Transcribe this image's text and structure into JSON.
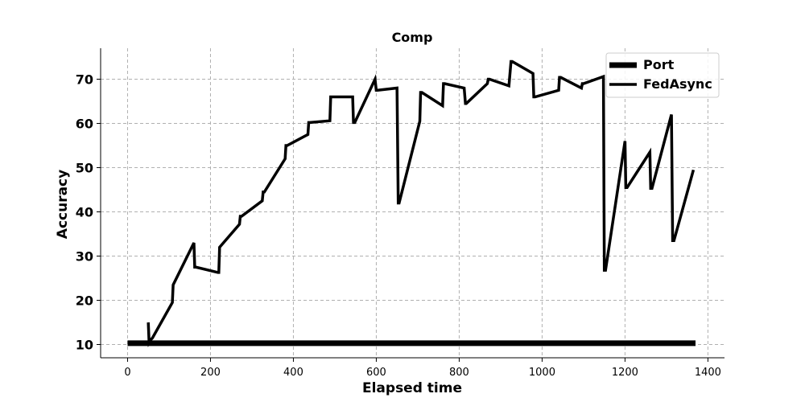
{
  "chart_data": {
    "type": "line",
    "title": "Comp",
    "xlabel": "Elapsed time",
    "ylabel": "Accuracy",
    "xlim": [
      -65,
      1440
    ],
    "ylim": [
      7,
      77
    ],
    "xticks": [
      0,
      200,
      400,
      600,
      800,
      1000,
      1200,
      1400
    ],
    "yticks": [
      10,
      20,
      30,
      40,
      50,
      60,
      70
    ],
    "grid": true,
    "legend_position": "top-right",
    "series": [
      {
        "name": "Port",
        "color": "#000000",
        "line_weight": "thick",
        "x": [
          0,
          1370
        ],
        "y": [
          10.3,
          10.3
        ]
      },
      {
        "name": "FedAsync",
        "color": "#000000",
        "line_weight": "normal",
        "x": [
          50,
          52,
          55,
          60,
          108,
          110,
          160,
          162,
          165,
          218,
          220,
          222,
          270,
          272,
          275,
          325,
          327,
          330,
          380,
          382,
          385,
          435,
          437,
          440,
          488,
          490,
          493,
          543,
          545,
          548,
          597,
          600,
          603,
          650,
          653,
          655,
          705,
          707,
          710,
          760,
          762,
          765,
          812,
          815,
          817,
          868,
          870,
          873,
          920,
          925,
          928,
          978,
          980,
          983,
          1040,
          1042,
          1045,
          1095,
          1097,
          1100,
          1148,
          1150,
          1153,
          1200,
          1202,
          1205,
          1260,
          1262,
          1265,
          1312,
          1315,
          1318,
          1365
        ],
        "y": [
          15,
          10.5,
          11,
          11.5,
          19.5,
          23.5,
          33,
          27.5,
          27.5,
          26.3,
          26.3,
          32,
          37.2,
          39,
          39,
          42.5,
          44.5,
          44.5,
          52,
          55,
          55,
          57.5,
          60.2,
          60.2,
          60.6,
          66,
          66,
          66,
          60.2,
          60.2,
          70,
          67.5,
          67.5,
          68,
          42,
          42,
          60.5,
          67,
          67,
          64,
          69,
          69,
          68,
          64.5,
          64.5,
          69,
          70,
          70,
          68.5,
          74,
          74,
          71.3,
          66,
          66,
          67.5,
          70.4,
          70.4,
          68,
          69,
          69,
          70.6,
          26.8,
          26.8,
          56,
          45.5,
          45.5,
          53.5,
          45.3,
          45.3,
          62,
          33.5,
          33.5,
          49.5
        ]
      }
    ]
  }
}
